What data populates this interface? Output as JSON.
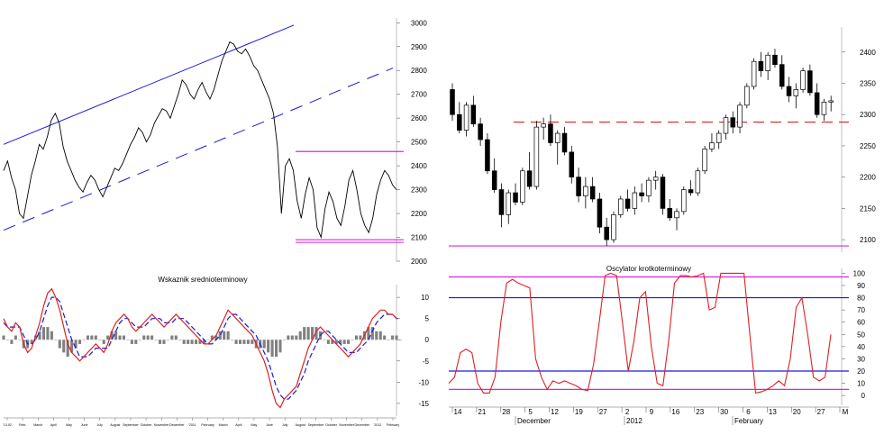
{
  "colors": {
    "price": "#000000",
    "trend": "#1a1adc",
    "level": "#e020e0",
    "oscillator": "#e02020",
    "signal": "#1a1adc",
    "histogram": "#808080",
    "dashed_level": "#e02020"
  },
  "chart_data": [
    {
      "type": "line",
      "panel": "long-term-price",
      "yticks": [
        2000,
        2100,
        2200,
        2300,
        2400,
        2500,
        2600,
        2700,
        2800,
        2900,
        3000
      ],
      "ylim": [
        2000,
        3020
      ],
      "x_count": 100,
      "close": [
        2380,
        2420,
        2350,
        2300,
        2200,
        2180,
        2270,
        2360,
        2420,
        2490,
        2470,
        2520,
        2590,
        2620,
        2580,
        2480,
        2420,
        2380,
        2340,
        2310,
        2290,
        2330,
        2360,
        2340,
        2300,
        2270,
        2310,
        2350,
        2390,
        2380,
        2410,
        2450,
        2490,
        2520,
        2560,
        2540,
        2500,
        2530,
        2580,
        2610,
        2640,
        2630,
        2600,
        2650,
        2700,
        2760,
        2740,
        2700,
        2680,
        2720,
        2750,
        2710,
        2680,
        2720,
        2780,
        2840,
        2880,
        2920,
        2910,
        2880,
        2870,
        2890,
        2860,
        2820,
        2800,
        2760,
        2720,
        2680,
        2620,
        2480,
        2200,
        2400,
        2430,
        2380,
        2250,
        2180,
        2280,
        2350,
        2300,
        2140,
        2100,
        2220,
        2290,
        2250,
        2180,
        2150,
        2230,
        2340,
        2380,
        2300,
        2200,
        2150,
        2120,
        2180,
        2280,
        2340,
        2380,
        2360,
        2320,
        2300
      ],
      "trend_upper": [
        2490,
        2990
      ],
      "trend_lower_dashed": [
        2130,
        2810
      ],
      "channel_top": 2460,
      "channel_bottom": 2090
    },
    {
      "type": "bar+line",
      "panel": "medium-term-indicator",
      "title": "Wskaznik srednioterminowy",
      "yticks": [
        -15,
        -10,
        -5,
        0,
        5,
        10
      ],
      "ylim": [
        -18,
        13
      ],
      "x_count": 100,
      "oscillator": [
        5,
        3,
        2,
        4,
        3,
        -1,
        -3,
        -2,
        1,
        4,
        8,
        11,
        12,
        10,
        7,
        3,
        -1,
        -3,
        -4,
        -5,
        -4,
        -3,
        -2,
        -1,
        -2,
        -3,
        -1,
        2,
        4,
        5,
        6,
        5,
        3,
        2,
        3,
        4,
        5,
        6,
        5,
        4,
        3,
        4,
        5,
        6,
        5,
        4,
        3,
        2,
        1,
        0,
        -1,
        -1,
        0,
        1,
        3,
        5,
        7,
        6,
        5,
        4,
        3,
        2,
        1,
        -1,
        -3,
        -5,
        -8,
        -12,
        -15,
        -16,
        -14,
        -13,
        -12,
        -11,
        -8,
        -5,
        -2,
        0,
        2,
        3,
        2,
        1,
        0,
        -1,
        -2,
        -3,
        -4,
        -3,
        -2,
        -1,
        1,
        3,
        5,
        6,
        7,
        7,
        6,
        6,
        5
      ],
      "signal": [
        4,
        3,
        3,
        3,
        3,
        1,
        -1,
        -1,
        0,
        2,
        5,
        8,
        10,
        10,
        9,
        6,
        3,
        0,
        -2,
        -4,
        -4,
        -4,
        -3,
        -2,
        -2,
        -2,
        -2,
        0,
        2,
        4,
        5,
        5,
        4,
        3,
        3,
        3,
        4,
        5,
        5,
        5,
        4,
        4,
        4,
        5,
        5,
        5,
        4,
        3,
        2,
        1,
        0,
        -1,
        -1,
        0,
        1,
        3,
        5,
        6,
        6,
        5,
        4,
        3,
        2,
        1,
        -1,
        -3,
        -5,
        -8,
        -11,
        -13,
        -14,
        -14,
        -13,
        -12,
        -10,
        -8,
        -5,
        -3,
        -1,
        1,
        2,
        2,
        1,
        0,
        -1,
        -2,
        -3,
        -3,
        -3,
        -2,
        -1,
        0,
        2,
        4,
        5,
        6,
        6,
        6,
        5,
        5
      ],
      "histogram": [
        1,
        0,
        -1,
        1,
        0,
        -2,
        -2,
        -1,
        1,
        2,
        3,
        3,
        2,
        0,
        -2,
        -3,
        -4,
        -3,
        -2,
        -1,
        0,
        1,
        1,
        1,
        0,
        -1,
        1,
        2,
        2,
        1,
        1,
        0,
        -1,
        -1,
        0,
        1,
        1,
        1,
        0,
        -1,
        -1,
        0,
        1,
        1,
        0,
        -1,
        -1,
        -1,
        -1,
        -1,
        -1,
        0,
        1,
        1,
        2,
        2,
        2,
        0,
        -1,
        -1,
        -1,
        -1,
        -1,
        -2,
        -2,
        -2,
        -3,
        -4,
        -4,
        -3,
        0,
        1,
        1,
        1,
        2,
        3,
        3,
        3,
        3,
        2,
        0,
        -1,
        -1,
        -1,
        -1,
        -1,
        -1,
        0,
        1,
        1,
        2,
        3,
        3,
        2,
        2,
        1,
        0,
        1,
        1,
        0
      ],
      "x_tick_labels": [
        "'13.02",
        "Febr.",
        "March",
        "April",
        "May",
        "June",
        "July",
        "August",
        "September",
        "October",
        "November",
        "December",
        "'2011",
        "February",
        "March",
        "April",
        "May",
        "June",
        "July",
        "August",
        "September",
        "October",
        "November",
        "December",
        "'2012",
        "February"
      ]
    },
    {
      "type": "candlestick",
      "panel": "short-term-price",
      "yticks": [
        2100,
        2150,
        2200,
        2250,
        2300,
        2350,
        2400
      ],
      "ylim": [
        2080,
        2440
      ],
      "dashed_level": 2288,
      "bottom_level": 2090,
      "ohlc": [
        [
          2340,
          2350,
          2290,
          2300
        ],
        [
          2300,
          2320,
          2270,
          2275
        ],
        [
          2275,
          2320,
          2265,
          2315
        ],
        [
          2315,
          2330,
          2280,
          2285
        ],
        [
          2285,
          2295,
          2250,
          2260
        ],
        [
          2260,
          2270,
          2205,
          2210
        ],
        [
          2210,
          2230,
          2175,
          2180
        ],
        [
          2180,
          2190,
          2120,
          2140
        ],
        [
          2140,
          2180,
          2125,
          2175
        ],
        [
          2175,
          2190,
          2155,
          2160
        ],
        [
          2160,
          2215,
          2155,
          2210
        ],
        [
          2210,
          2240,
          2180,
          2185
        ],
        [
          2185,
          2290,
          2180,
          2280
        ],
        [
          2280,
          2295,
          2260,
          2285
        ],
        [
          2285,
          2300,
          2250,
          2255
        ],
        [
          2255,
          2275,
          2220,
          2270
        ],
        [
          2270,
          2280,
          2235,
          2240
        ],
        [
          2240,
          2250,
          2190,
          2200
        ],
        [
          2200,
          2215,
          2160,
          2170
        ],
        [
          2170,
          2200,
          2150,
          2185
        ],
        [
          2185,
          2200,
          2160,
          2165
        ],
        [
          2165,
          2175,
          2110,
          2120
        ],
        [
          2120,
          2135,
          2090,
          2100
        ],
        [
          2100,
          2145,
          2095,
          2140
        ],
        [
          2140,
          2170,
          2135,
          2165
        ],
        [
          2165,
          2180,
          2145,
          2150
        ],
        [
          2150,
          2185,
          2140,
          2175
        ],
        [
          2175,
          2190,
          2160,
          2170
        ],
        [
          2170,
          2200,
          2160,
          2195
        ],
        [
          2195,
          2210,
          2180,
          2200
        ],
        [
          2200,
          2205,
          2140,
          2150
        ],
        [
          2150,
          2165,
          2130,
          2135
        ],
        [
          2135,
          2150,
          2115,
          2145
        ],
        [
          2145,
          2185,
          2140,
          2180
        ],
        [
          2180,
          2195,
          2170,
          2175
        ],
        [
          2175,
          2215,
          2170,
          2210
        ],
        [
          2210,
          2250,
          2205,
          2245
        ],
        [
          2245,
          2270,
          2240,
          2255
        ],
        [
          2255,
          2275,
          2245,
          2270
        ],
        [
          2270,
          2300,
          2260,
          2295
        ],
        [
          2295,
          2305,
          2270,
          2280
        ],
        [
          2280,
          2320,
          2270,
          2315
        ],
        [
          2315,
          2350,
          2310,
          2345
        ],
        [
          2345,
          2390,
          2340,
          2385
        ],
        [
          2385,
          2400,
          2360,
          2370
        ],
        [
          2370,
          2400,
          2355,
          2395
        ],
        [
          2395,
          2405,
          2375,
          2380
        ],
        [
          2380,
          2395,
          2340,
          2345
        ],
        [
          2345,
          2360,
          2320,
          2330
        ],
        [
          2330,
          2350,
          2310,
          2340
        ],
        [
          2340,
          2375,
          2335,
          2370
        ],
        [
          2370,
          2380,
          2330,
          2335
        ],
        [
          2335,
          2350,
          2295,
          2300
        ],
        [
          2300,
          2325,
          2290,
          2320
        ],
        [
          2320,
          2330,
          2305,
          2322
        ]
      ],
      "x_tick_labels": [
        "14",
        "21",
        "28",
        "5",
        "12",
        "19",
        "27",
        "2",
        "9",
        "16",
        "23",
        "30",
        "6",
        "13",
        "20",
        "27",
        "M"
      ],
      "x_month_labels": [
        "December",
        "2012",
        "February"
      ]
    },
    {
      "type": "line",
      "panel": "short-term-oscillator",
      "title": "Oscylator krotkoterminowy",
      "yticks": [
        0,
        10,
        20,
        30,
        40,
        50,
        60,
        70,
        80,
        90,
        100
      ],
      "ylim": [
        -8,
        104
      ],
      "upper_level": 97,
      "mid_upper_level": 80,
      "mid_lower_level": 20,
      "lower_level": 5,
      "values": [
        10,
        15,
        35,
        38,
        35,
        10,
        2,
        2,
        15,
        60,
        92,
        95,
        92,
        90,
        88,
        30,
        15,
        5,
        12,
        10,
        12,
        10,
        8,
        5,
        4,
        25,
        60,
        98,
        100,
        98,
        60,
        20,
        45,
        80,
        85,
        40,
        10,
        8,
        45,
        92,
        98,
        98,
        97,
        98,
        100,
        70,
        72,
        100,
        100,
        100,
        100,
        100,
        50,
        2,
        3,
        5,
        8,
        12,
        8,
        30,
        72,
        80,
        50,
        15,
        12,
        15,
        50
      ]
    }
  ]
}
